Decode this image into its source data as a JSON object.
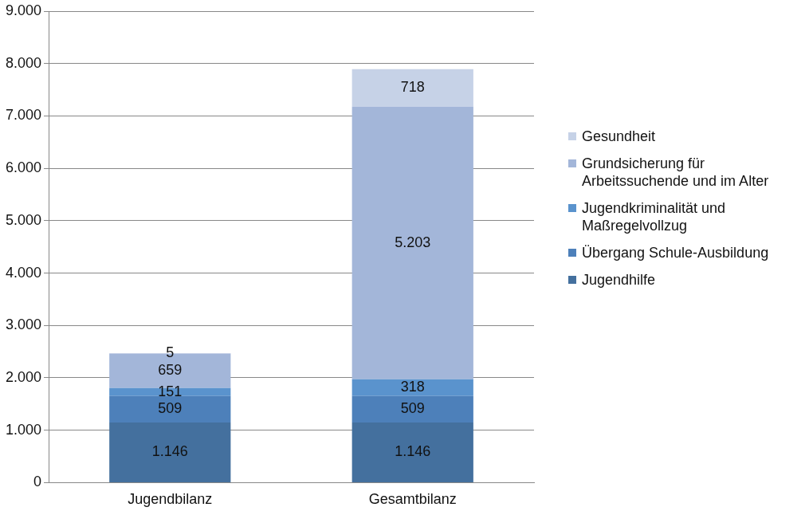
{
  "chart_data": {
    "type": "bar",
    "stacked": true,
    "categories": [
      "Jugendbilanz",
      "Gesamtbilanz"
    ],
    "series": [
      {
        "name": "Jugendhilfe",
        "color": "#44709e",
        "values": [
          1146,
          1146
        ],
        "value_labels": [
          "1.146",
          "1.146"
        ]
      },
      {
        "name": "Übergang Schule-Ausbildung",
        "color": "#4d80ba",
        "values": [
          509,
          509
        ],
        "value_labels": [
          "509",
          "509"
        ]
      },
      {
        "name": "Jugendkriminalität und Maßregelvollzug",
        "color": "#5a93cd",
        "values": [
          151,
          318
        ],
        "value_labels": [
          "151",
          "318"
        ]
      },
      {
        "name": "Grundsicherung für Arbeitssuchende und im Alter",
        "color": "#a3b6d9",
        "values": [
          659,
          5203
        ],
        "value_labels": [
          "659",
          "5.203"
        ]
      },
      {
        "name": "Gesundheit",
        "color": "#c6d2e7",
        "values": [
          5,
          718
        ],
        "value_labels": [
          "5",
          "718"
        ]
      }
    ],
    "ylim": [
      0,
      9000
    ],
    "yticks": [
      0,
      {
        "value": 1000,
        "label": "1.000"
      },
      {
        "value": 2000,
        "label": "2.000"
      },
      {
        "value": 3000,
        "label": "3.000"
      },
      {
        "value": 4000,
        "label": "4.000"
      },
      {
        "value": 5000,
        "label": "5.000"
      },
      {
        "value": 6000,
        "label": "6.000"
      },
      {
        "value": 7000,
        "label": "7.000"
      },
      {
        "value": 8000,
        "label": "8.000"
      },
      {
        "value": 9000,
        "label": "9.000"
      }
    ],
    "grid": "y",
    "legend": "right"
  }
}
